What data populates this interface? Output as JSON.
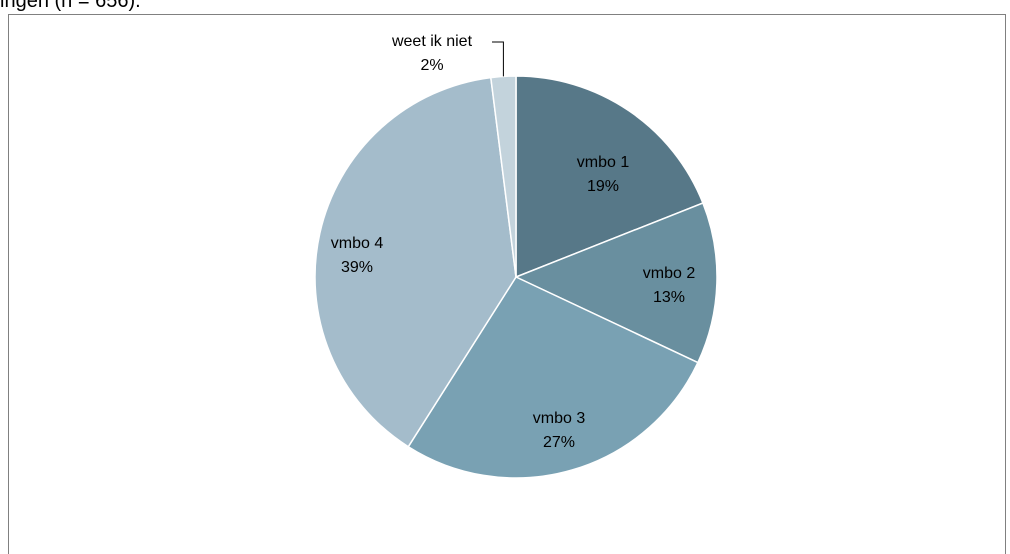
{
  "caption_fragment": "ingen (n = 656).",
  "chart_data": {
    "type": "pie",
    "title": "",
    "slices": [
      {
        "label": "vmbo 1",
        "percent_label": "19%",
        "value": 19,
        "color": "#577888"
      },
      {
        "label": "vmbo 2",
        "percent_label": "13%",
        "value": 13,
        "color": "#698f9f"
      },
      {
        "label": "vmbo 3",
        "percent_label": "27%",
        "value": 27,
        "color": "#79a1b3"
      },
      {
        "label": "vmbo 4",
        "percent_label": "39%",
        "value": 39,
        "color": "#a4bccb"
      },
      {
        "label": "weet ik niet",
        "percent_label": "2%",
        "value": 2,
        "color": "#c3d3dc"
      }
    ],
    "start_angle": "12 o'clock",
    "direction": "clockwise",
    "slice_edge_color": "#ffffff",
    "legend": "none"
  }
}
